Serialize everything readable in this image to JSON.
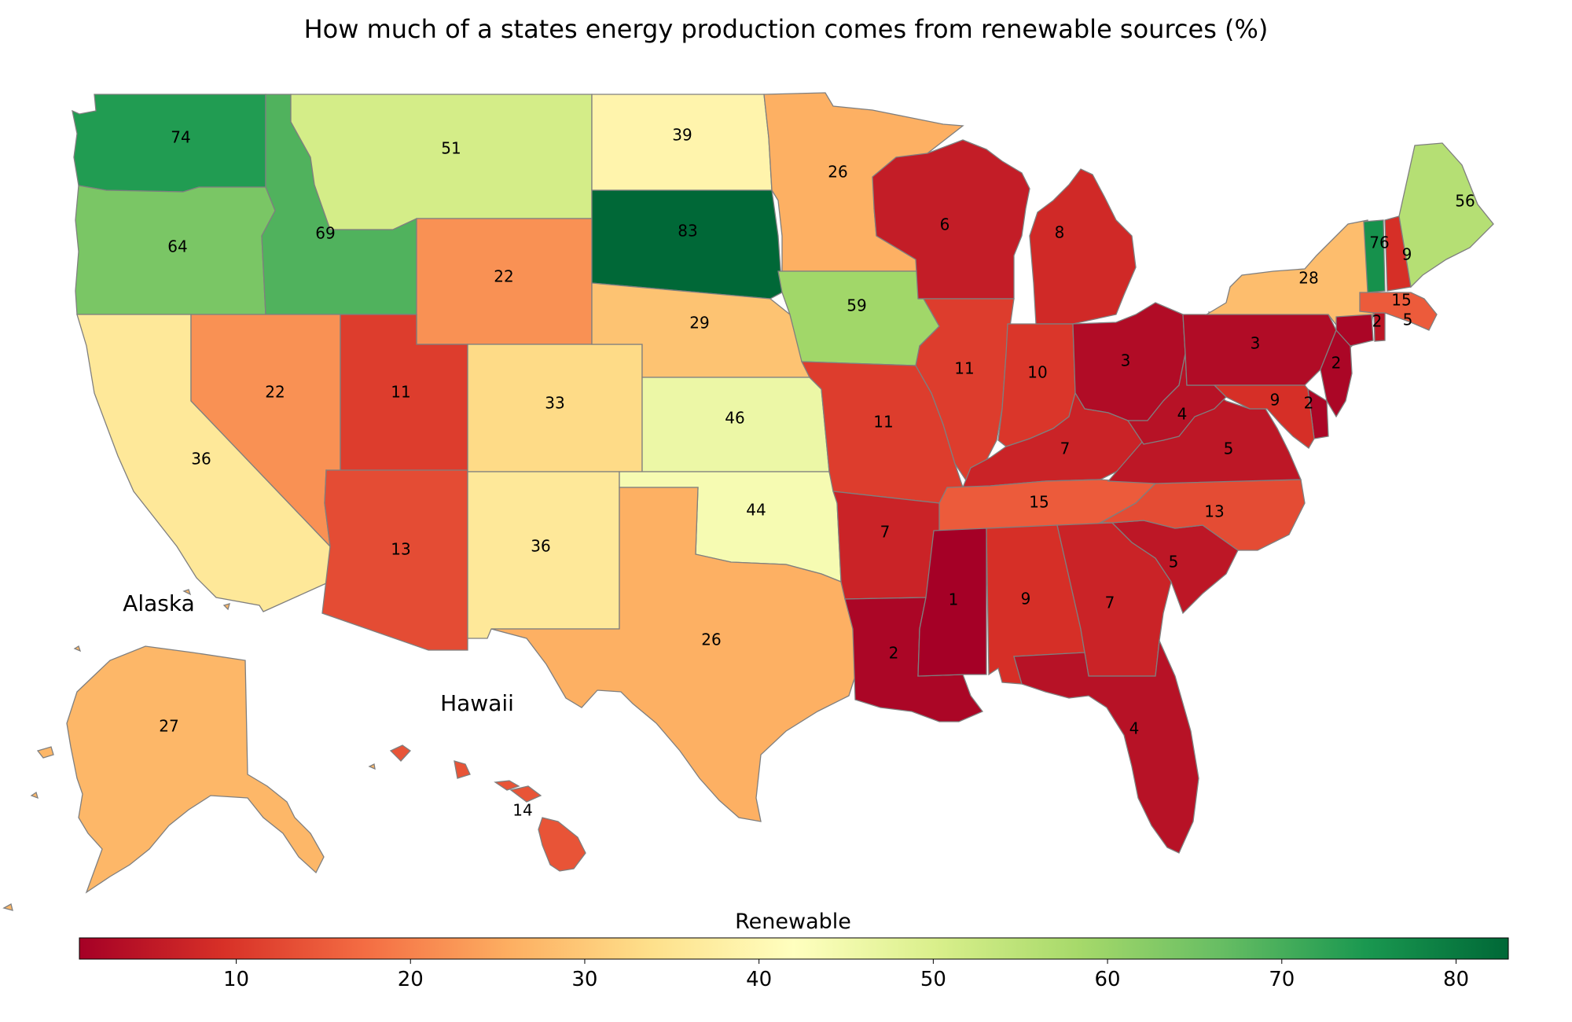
{
  "title": "How much of a states energy production comes from renewable sources (%)",
  "colorbar": {
    "label": "Renewable",
    "min": 1,
    "max": 83,
    "ticks": [
      "10",
      "20",
      "30",
      "40",
      "50",
      "60",
      "70",
      "80"
    ],
    "colormap": [
      "#a50026",
      "#d73027",
      "#f46d43",
      "#fdae61",
      "#fee08b",
      "#ffffbf",
      "#d9ef8b",
      "#a6d96a",
      "#66bd63",
      "#1a9850",
      "#006837"
    ]
  },
  "insets": {
    "alaska": "Alaska",
    "hawaii": "Hawaii"
  },
  "chart_data": {
    "type": "choropleth",
    "value_unit": "%",
    "states": [
      {
        "state": "WA",
        "value": 74
      },
      {
        "state": "OR",
        "value": 64
      },
      {
        "state": "CA",
        "value": 36
      },
      {
        "state": "ID",
        "value": 69
      },
      {
        "state": "NV",
        "value": 22
      },
      {
        "state": "MT",
        "value": 51
      },
      {
        "state": "WY",
        "value": 22
      },
      {
        "state": "UT",
        "value": 11
      },
      {
        "state": "AZ",
        "value": 13
      },
      {
        "state": "CO",
        "value": 33
      },
      {
        "state": "NM",
        "value": 36
      },
      {
        "state": "ND",
        "value": 39
      },
      {
        "state": "SD",
        "value": 83
      },
      {
        "state": "NE",
        "value": 29
      },
      {
        "state": "KS",
        "value": 46
      },
      {
        "state": "OK",
        "value": 44
      },
      {
        "state": "TX",
        "value": 26
      },
      {
        "state": "MN",
        "value": 26
      },
      {
        "state": "IA",
        "value": 59
      },
      {
        "state": "MO",
        "value": 11
      },
      {
        "state": "AR",
        "value": 7
      },
      {
        "state": "LA",
        "value": 2
      },
      {
        "state": "WI",
        "value": 6
      },
      {
        "state": "IL",
        "value": 11
      },
      {
        "state": "MI",
        "value": 8
      },
      {
        "state": "IN",
        "value": 10
      },
      {
        "state": "OH",
        "value": 3
      },
      {
        "state": "KY",
        "value": 7
      },
      {
        "state": "TN",
        "value": 15
      },
      {
        "state": "MS",
        "value": 1
      },
      {
        "state": "AL",
        "value": 9
      },
      {
        "state": "GA",
        "value": 7
      },
      {
        "state": "FL",
        "value": 4
      },
      {
        "state": "SC",
        "value": 5
      },
      {
        "state": "NC",
        "value": 13
      },
      {
        "state": "VA",
        "value": 5
      },
      {
        "state": "WV",
        "value": 4
      },
      {
        "state": "PA",
        "value": 3
      },
      {
        "state": "NY",
        "value": 28
      },
      {
        "state": "NJ",
        "value": 2
      },
      {
        "state": "DE",
        "value": 2
      },
      {
        "state": "MD",
        "value": 9
      },
      {
        "state": "CT",
        "value": 2
      },
      {
        "state": "RI",
        "value": 5
      },
      {
        "state": "MA",
        "value": 15
      },
      {
        "state": "VT",
        "value": 76
      },
      {
        "state": "NH",
        "value": 9
      },
      {
        "state": "ME",
        "value": 56
      },
      {
        "state": "AK",
        "value": 27
      },
      {
        "state": "HI",
        "value": 14
      }
    ]
  }
}
